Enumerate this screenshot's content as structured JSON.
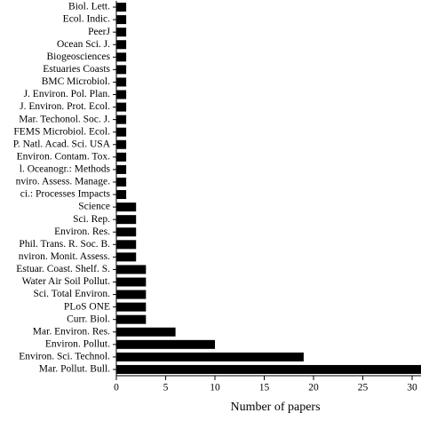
{
  "chart_data": {
    "type": "hbar",
    "x_label": "Number of papers",
    "categories": [
      "Biol. Lett.",
      "Ecol. Indic.",
      "PeerJ",
      "Ocean Sci. J.",
      "Biogeosciences",
      "Estuaries Coasts",
      "BMC Microbiol.",
      "J. Environ. Pol. Plan.",
      "J. Environ. Prot. Ecol.",
      "Mar. Techonol. Soc. J.",
      "FEMS Microbiol. Ecol.",
      "P. Natl. Acad. Sci. USA",
      "Environ. Contam. Tox.",
      "l. Oceanogr.: Methods",
      "nviro. Assess. Manage.",
      "ci.: Processes Impacts",
      "Science",
      "Sci. Rep.",
      "Environ. Res.",
      "Phil. Trans. R. Soc. B.",
      "nviron. Monit. Assess.",
      "Estuar. Coast. Shelf. S.",
      "Water Air Soil Pollut.",
      "Sci. Total Environ.",
      "PLoS ONE",
      "Curr. Biol.",
      "Mar. Environ. Res.",
      "Environ. Pollut.",
      "Environ. Sci. Technol.",
      "Mar. Pollut. Bull."
    ],
    "values": [
      1,
      1,
      1,
      1,
      1,
      1,
      1,
      1,
      1,
      1,
      1,
      1,
      1,
      1,
      1,
      1,
      2,
      2,
      2,
      2,
      2,
      3,
      3,
      3,
      3,
      3,
      6,
      10,
      19,
      31
    ],
    "color": "#000000",
    "xlim": [
      0,
      30
    ],
    "xticks": [
      0,
      5,
      10,
      15,
      20,
      25,
      30
    ]
  }
}
